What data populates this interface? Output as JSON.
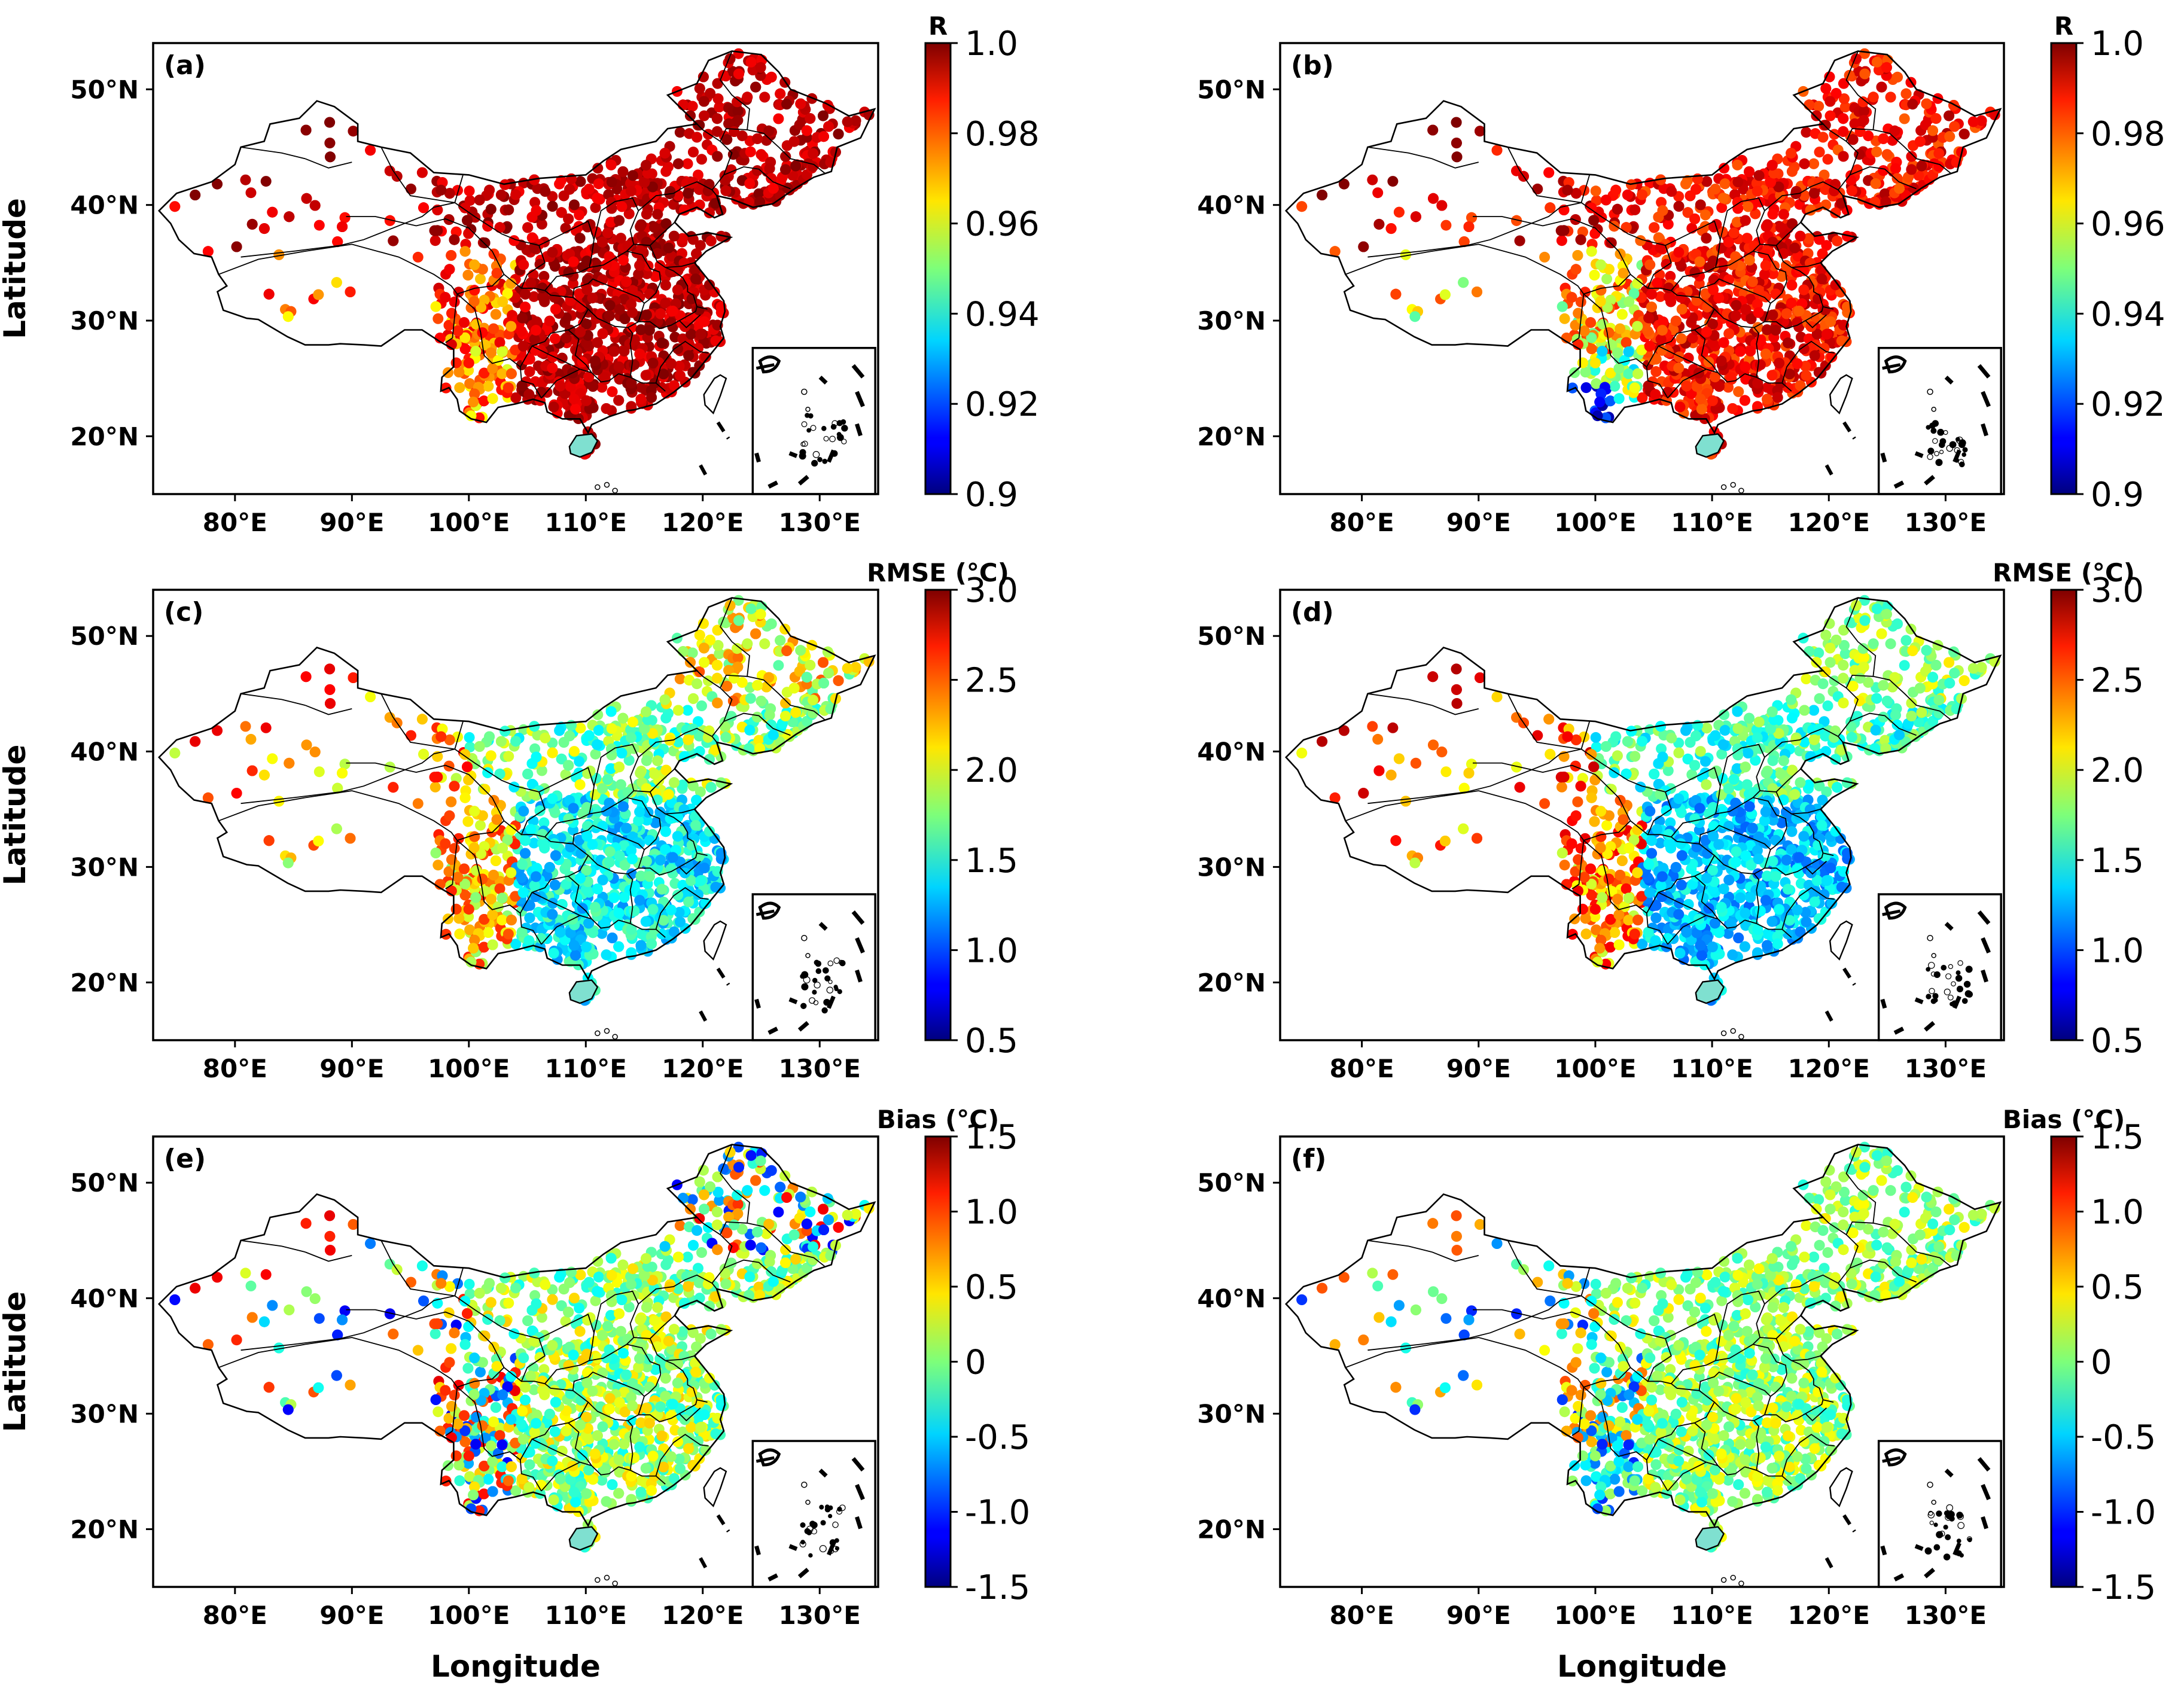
{
  "figure": {
    "xlabel": "Longitude",
    "ylabel": "Latitude",
    "xticks": [
      "80°E",
      "90°E",
      "100°E",
      "110°E",
      "120°E",
      "130°E"
    ],
    "yticks": [
      "20°N",
      "30°N",
      "40°N",
      "50°N"
    ]
  },
  "chart_data": [
    {
      "type": "scatter",
      "panel": "(a)",
      "variable": "R",
      "colorbar_title": "R",
      "colorbar_range": [
        0.9,
        1.0
      ],
      "colorbar_ticks": [
        "0.9",
        "0.92",
        "0.94",
        "0.96",
        "0.98",
        "1.0"
      ],
      "colormap": "jet",
      "xlim": [
        73,
        135
      ],
      "ylim": [
        15,
        54
      ],
      "xlabel": "",
      "ylabel": "Latitude",
      "summary": "Station correlation; mostly 0.98–1.0 (red) over east China and the north-west, lower 0.95–0.97 values over the Tibetan Plateau and Yunnan"
    },
    {
      "type": "scatter",
      "panel": "(b)",
      "variable": "R",
      "colorbar_title": "R",
      "colorbar_range": [
        0.9,
        1.0
      ],
      "colorbar_ticks": [
        "0.9",
        "0.92",
        "0.94",
        "0.96",
        "0.98",
        "1.0"
      ],
      "colormap": "jet",
      "xlim": [
        73,
        135
      ],
      "ylim": [
        15,
        54
      ],
      "xlabel": "",
      "ylabel": "",
      "summary": "Station correlation; mostly 0.97–1.0 over east China, lowest values (~0.90–0.93) in south-west Yunnan"
    },
    {
      "type": "scatter",
      "panel": "(c)",
      "variable": "RMSE",
      "colorbar_title": "RMSE (°C)",
      "colorbar_range": [
        0.5,
        3.0
      ],
      "colorbar_ticks": [
        "0.5",
        "1.0",
        "1.5",
        "2.0",
        "2.5",
        "3.0"
      ],
      "colormap": "jet",
      "xlim": [
        73,
        135
      ],
      "ylim": [
        15,
        54
      ],
      "xlabel": "",
      "ylabel": "Latitude",
      "summary": "RMSE around 1.2–1.6 °C over south-east China, 2–3 °C in the west and north-east"
    },
    {
      "type": "scatter",
      "panel": "(d)",
      "variable": "RMSE",
      "colorbar_title": "RMSE (°C)",
      "colorbar_range": [
        0.5,
        3.0
      ],
      "colorbar_ticks": [
        "0.5",
        "1.0",
        "1.5",
        "2.0",
        "2.5",
        "3.0"
      ],
      "colormap": "jet",
      "xlim": [
        73,
        135
      ],
      "ylim": [
        15,
        54
      ],
      "xlabel": "",
      "ylabel": "",
      "summary": "RMSE around 1.1–1.5 °C over south-east China, 2–3 °C in the west"
    },
    {
      "type": "scatter",
      "panel": "(e)",
      "variable": "Bias",
      "colorbar_title": "Bias (°C)",
      "colorbar_range": [
        -1.5,
        1.5
      ],
      "colorbar_ticks": [
        "-1.5",
        "-1.0",
        "-0.5",
        "0",
        "0.5",
        "1.0",
        "1.5"
      ],
      "colormap": "jet",
      "xlim": [
        73,
        135
      ],
      "ylim": [
        15,
        54
      ],
      "xlabel": "Longitude",
      "ylabel": "Latitude",
      "summary": "Bias mostly between -0.5 and 0.5 °C, scattered ±1.5 °C stations in the west and north-east"
    },
    {
      "type": "scatter",
      "panel": "(f)",
      "variable": "Bias",
      "colorbar_title": "Bias (°C)",
      "colorbar_range": [
        -1.5,
        1.5
      ],
      "colorbar_ticks": [
        "-1.5",
        "-1.0",
        "-0.5",
        "0",
        "0.5",
        "1.0",
        "1.5"
      ],
      "colormap": "jet",
      "xlim": [
        73,
        135
      ],
      "ylim": [
        15,
        54
      ],
      "xlabel": "Longitude",
      "ylabel": "",
      "summary": "Bias mostly between -0.3 and 0.3 °C, some negative stations in Yunnan and the west"
    }
  ]
}
